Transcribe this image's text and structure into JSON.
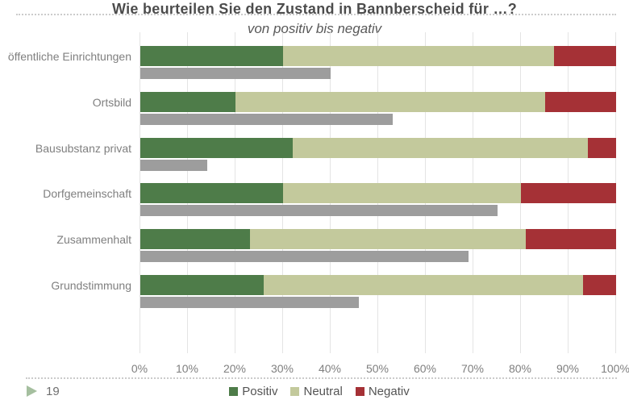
{
  "title": "Wie beurteilen Sie den Zustand in Bannberscheid für …?",
  "subtitle": "von positiv bis negativ",
  "page_number": "19",
  "colors": {
    "positiv": "#4e7c49",
    "neutral": "#c3c99c",
    "negativ": "#a53136",
    "secondary_bar": "#9d9d9d",
    "grid": "#e4e4e4"
  },
  "chart_data": {
    "type": "bar",
    "orientation": "horizontal",
    "stacked": true,
    "title": "Wie beurteilen Sie den Zustand in Bannberscheid für …?",
    "subtitle": "von positiv bis negativ",
    "categories": [
      "öffentliche Einrichtungen",
      "Ortsbild",
      "Bausubstanz privat",
      "Dorfgemeinschaft",
      "Zusammenhalt",
      "Grundstimmung"
    ],
    "series": [
      {
        "name": "Positiv",
        "color_key": "positiv",
        "values": [
          30,
          20,
          32,
          30,
          23,
          26
        ]
      },
      {
        "name": "Neutral",
        "color_key": "neutral",
        "values": [
          57,
          65,
          62,
          50,
          58,
          67
        ]
      },
      {
        "name": "Negativ",
        "color_key": "negativ",
        "values": [
          13,
          15,
          6,
          20,
          19,
          7
        ]
      }
    ],
    "secondary_series": {
      "name": "unlabeled-gray",
      "color_key": "secondary_bar",
      "values": [
        40,
        53,
        14,
        75,
        69,
        46
      ]
    },
    "x_ticks": [
      "0%",
      "10%",
      "20%",
      "30%",
      "40%",
      "50%",
      "60%",
      "70%",
      "80%",
      "90%",
      "100%"
    ],
    "xlim": [
      0,
      100
    ],
    "grid": true,
    "legend": [
      "Positiv",
      "Neutral",
      "Negativ"
    ],
    "legend_position": "bottom"
  }
}
